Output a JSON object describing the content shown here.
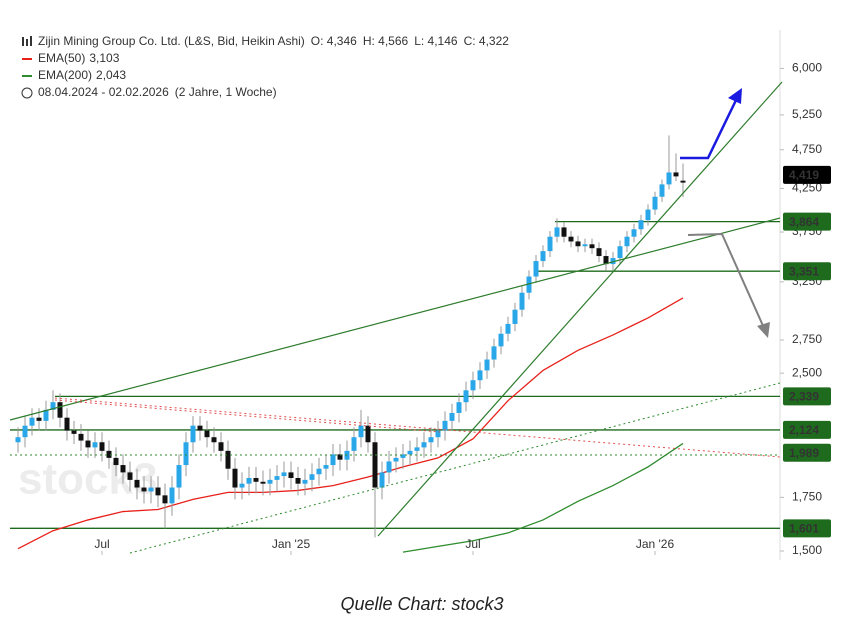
{
  "chart_data": {
    "type": "candlestick",
    "title": "Zijin Mining Group Co. Ltd. (L&S, Bid, Heikin Ashi)",
    "ohlc": [
      "O: 4,346",
      "H: 4,566",
      "L: 4,146",
      "C: 4,322"
    ],
    "period": "08.04.2024 - 02.02.2026",
    "period_note": "(2 Jahre, 1 Woche)",
    "caption": "Quelle Chart: stock3",
    "watermark": "stock3",
    "log_scale": true,
    "up_color": "#2aa7e8",
    "down_color": "#111111",
    "categories": [
      null,
      null,
      null,
      null,
      null,
      null,
      null,
      null,
      null,
      null,
      null,
      null,
      "Jul",
      null,
      null,
      null,
      null,
      null,
      null,
      null,
      null,
      null,
      null,
      null,
      null,
      null,
      null,
      null,
      null,
      null,
      null,
      null,
      null,
      null,
      null,
      null,
      null,
      null,
      null,
      "Jan '25",
      null,
      null,
      null,
      null,
      null,
      null,
      null,
      null,
      null,
      null,
      null,
      null,
      null,
      null,
      null,
      null,
      null,
      null,
      null,
      null,
      null,
      null,
      null,
      null,
      null,
      "Jul",
      null,
      null,
      null,
      null,
      null,
      null,
      null,
      null,
      null,
      null,
      null,
      null,
      null,
      null,
      null,
      null,
      null,
      null,
      null,
      null,
      null,
      null,
      null,
      null,
      null,
      "Jan '26",
      null,
      null,
      null,
      null
    ],
    "open": [
      2050,
      2080,
      2150,
      2200,
      2180,
      2250,
      2300,
      2200,
      2120,
      2100,
      2060,
      2020,
      2050,
      2000,
      1960,
      1920,
      1880,
      1840,
      1800,
      1780,
      1800,
      1760,
      1720,
      1800,
      1920,
      2050,
      2150,
      2120,
      2080,
      2050,
      2000,
      1900,
      1800,
      1820,
      1850,
      1830,
      1820,
      1840,
      1860,
      1880,
      1850,
      1820,
      1840,
      1870,
      1900,
      1920,
      1980,
      1950,
      2000,
      2080,
      2150,
      2050,
      1800,
      1880,
      1940,
      1960,
      1980,
      2000,
      2020,
      2050,
      2080,
      2120,
      2180,
      2230,
      2300,
      2380,
      2450,
      2520,
      2600,
      2700,
      2800,
      2880,
      3000,
      3150,
      3300,
      3450,
      3550,
      3700,
      3800,
      3700,
      3650,
      3600,
      3620,
      3580,
      3500,
      3420,
      3480,
      3600,
      3700,
      3780,
      3880,
      4000,
      4150,
      4300,
      4450,
      4346
    ],
    "high": [
      2140,
      2210,
      2260,
      2260,
      2310,
      2380,
      2360,
      2260,
      2180,
      2160,
      2120,
      2110,
      2110,
      2060,
      2020,
      1980,
      1940,
      1900,
      1860,
      1860,
      1860,
      1820,
      1860,
      1980,
      2110,
      2210,
      2210,
      2180,
      2140,
      2110,
      2060,
      1960,
      1880,
      1910,
      1910,
      1890,
      1900,
      1920,
      1940,
      1940,
      1910,
      1900,
      1930,
      1960,
      1980,
      2040,
      2040,
      2060,
      2140,
      2250,
      2210,
      2110,
      1940,
      2000,
      2020,
      2040,
      2060,
      2080,
      2110,
      2140,
      2180,
      2240,
      2290,
      2360,
      2440,
      2510,
      2580,
      2660,
      2760,
      2860,
      2940,
      3060,
      3210,
      3360,
      3510,
      3610,
      3760,
      3900,
      3860,
      3760,
      3710,
      3680,
      3680,
      3640,
      3560,
      3540,
      3660,
      3760,
      3840,
      3940,
      4060,
      4210,
      4360,
      4950,
      4700,
      4566
    ],
    "low": [
      1990,
      2020,
      2090,
      2120,
      2120,
      2190,
      2140,
      2060,
      2040,
      2000,
      1960,
      1960,
      1940,
      1900,
      1860,
      1820,
      1780,
      1740,
      1720,
      1720,
      1700,
      1600,
      1660,
      1740,
      1860,
      1990,
      2060,
      2020,
      1990,
      1940,
      1840,
      1740,
      1740,
      1760,
      1770,
      1760,
      1760,
      1780,
      1800,
      1790,
      1760,
      1760,
      1780,
      1810,
      1840,
      1860,
      1890,
      1890,
      1940,
      2020,
      1990,
      1560,
      1740,
      1820,
      1880,
      1900,
      1920,
      1940,
      1960,
      1990,
      2020,
      2060,
      2120,
      2170,
      2240,
      2320,
      2390,
      2460,
      2540,
      2640,
      2740,
      2820,
      2940,
      3090,
      3240,
      3390,
      3490,
      3640,
      3640,
      3590,
      3540,
      3540,
      3520,
      3440,
      3360,
      3360,
      3420,
      3540,
      3640,
      3720,
      3820,
      3940,
      4090,
      4240,
      4340,
      4146
    ],
    "close": [
      2080,
      2150,
      2200,
      2180,
      2250,
      2300,
      2200,
      2120,
      2100,
      2060,
      2020,
      2050,
      2000,
      1960,
      1920,
      1880,
      1840,
      1800,
      1780,
      1800,
      1760,
      1720,
      1800,
      1920,
      2050,
      2150,
      2120,
      2080,
      2050,
      2000,
      1900,
      1800,
      1820,
      1850,
      1830,
      1820,
      1840,
      1860,
      1880,
      1850,
      1820,
      1840,
      1870,
      1900,
      1920,
      1980,
      1950,
      2000,
      2080,
      2150,
      2050,
      1800,
      1880,
      1940,
      1960,
      1980,
      2000,
      2020,
      2050,
      2080,
      2120,
      2180,
      2230,
      2300,
      2380,
      2450,
      2520,
      2600,
      2700,
      2800,
      2880,
      3000,
      3150,
      3300,
      3450,
      3550,
      3700,
      3800,
      3700,
      3650,
      3600,
      3620,
      3580,
      3500,
      3420,
      3480,
      3600,
      3700,
      3780,
      3880,
      4000,
      4150,
      4300,
      4450,
      4400,
      4322
    ],
    "series": [
      {
        "name": "EMA(50)",
        "color": "#e8201a",
        "value_label": "3,103",
        "x": [
          0,
          5,
          10,
          15,
          20,
          25,
          30,
          35,
          40,
          45,
          50,
          55,
          60,
          65,
          70,
          75,
          80,
          85,
          90,
          95
        ],
        "values": [
          1510,
          1590,
          1640,
          1680,
          1690,
          1740,
          1775,
          1775,
          1785,
          1810,
          1855,
          1910,
          1960,
          2070,
          2310,
          2520,
          2670,
          2790,
          2930,
          3103
        ]
      },
      {
        "name": "EMA(200)",
        "color": "#2e8b2e",
        "value_label": "2,043",
        "x": [
          55,
          60,
          65,
          70,
          75,
          80,
          85,
          90,
          95
        ],
        "values": [
          1495,
          1520,
          1545,
          1580,
          1640,
          1730,
          1810,
          1910,
          2043
        ]
      }
    ],
    "levels": [
      {
        "value": 4419,
        "label": "4,419",
        "color": "#000000"
      },
      {
        "value": 3864,
        "label": "3,864",
        "color": "#1e6b1e"
      },
      {
        "value": 3351,
        "label": "3,351",
        "color": "#1e6b1e"
      },
      {
        "value": 2339,
        "label": "2,339",
        "color": "#1e6b1e"
      },
      {
        "value": 2124,
        "label": "2,124",
        "color": "#1e6b1e"
      },
      {
        "value": 1989,
        "label": "1,989",
        "color": "#1e6b1e"
      },
      {
        "value": 1601,
        "label": "1,601",
        "color": "#1e6b1e"
      }
    ],
    "ylim": [
      1500,
      6700
    ],
    "yticks": [
      {
        "value": 1500,
        "label": "1,500"
      },
      {
        "value": 1750,
        "label": "1,750"
      },
      {
        "value": 2500,
        "label": "2,500"
      },
      {
        "value": 2750,
        "label": "2,750"
      },
      {
        "value": 3250,
        "label": "3,250"
      },
      {
        "value": 3750,
        "label": "3,750"
      },
      {
        "value": 4250,
        "label": "4,250"
      },
      {
        "value": 4750,
        "label": "4,750"
      },
      {
        "value": 5250,
        "label": "5,250"
      },
      {
        "value": 6000,
        "label": "6,000"
      }
    ]
  }
}
